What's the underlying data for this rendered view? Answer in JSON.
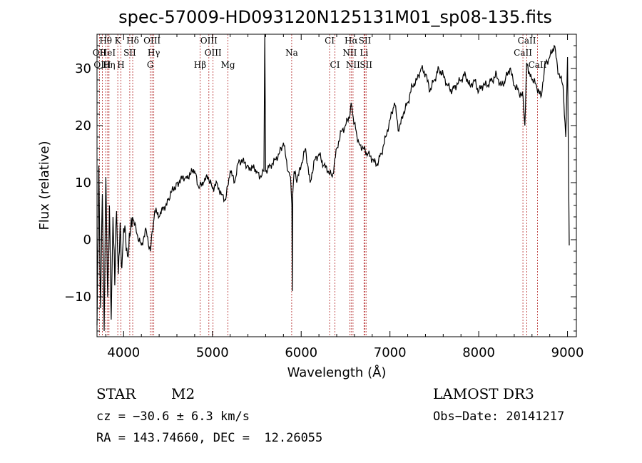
{
  "chart_data": {
    "type": "line",
    "title": "spec-57009-HD093120N125131M01_sp08-135.fits",
    "xlabel": "Wavelength (Å)",
    "ylabel": "Flux (relative)",
    "xlim": [
      3700,
      9100
    ],
    "ylim": [
      -17,
      36
    ],
    "xticks": [
      4000,
      5000,
      6000,
      7000,
      8000,
      9000
    ],
    "yticks": [
      -10,
      0,
      10,
      20,
      30
    ],
    "series": [
      {
        "name": "flux",
        "x": [
          3700,
          3720,
          3740,
          3760,
          3780,
          3800,
          3820,
          3840,
          3860,
          3880,
          3900,
          3920,
          3940,
          3960,
          3980,
          4000,
          4050,
          4100,
          4150,
          4200,
          4250,
          4300,
          4350,
          4400,
          4500,
          4600,
          4700,
          4800,
          4850,
          4900,
          4950,
          5000,
          5050,
          5100,
          5150,
          5200,
          5250,
          5300,
          5400,
          5500,
          5550,
          5580,
          5590,
          5600,
          5650,
          5700,
          5750,
          5800,
          5850,
          5880,
          5895,
          5900,
          5905,
          5920,
          5950,
          6000,
          6050,
          6100,
          6150,
          6200,
          6250,
          6300,
          6350,
          6400,
          6450,
          6500,
          6550,
          6563,
          6580,
          6620,
          6650,
          6700,
          6750,
          6800,
          6850,
          6900,
          6950,
          7000,
          7050,
          7100,
          7150,
          7200,
          7250,
          7300,
          7350,
          7400,
          7450,
          7500,
          7550,
          7600,
          7650,
          7700,
          7750,
          7800,
          7850,
          7900,
          7950,
          8000,
          8050,
          8100,
          8150,
          8200,
          8250,
          8300,
          8350,
          8400,
          8450,
          8500,
          8520,
          8540,
          8560,
          8600,
          8650,
          8700,
          8750,
          8800,
          8850,
          8900,
          8950,
          8980,
          9000,
          9020
        ],
        "values": [
          -15,
          13,
          -12,
          8,
          -16,
          11,
          -10,
          6,
          -14,
          4,
          -8,
          5,
          -6,
          3,
          -5,
          2,
          -3,
          4,
          1,
          -1,
          2,
          -2,
          5,
          4,
          7,
          10,
          11,
          12,
          9,
          10,
          11,
          9,
          10,
          8,
          7,
          12,
          10,
          14,
          13,
          12,
          11,
          12,
          36,
          12,
          13,
          14,
          15,
          17,
          12,
          11,
          6,
          -9,
          8,
          12,
          10,
          13,
          16,
          10,
          14,
          15,
          13,
          12,
          11,
          16,
          19,
          20,
          22,
          24,
          22,
          19,
          17,
          16,
          15,
          14,
          13,
          15,
          18,
          21,
          24,
          19,
          22,
          24,
          27,
          28,
          30,
          29,
          26,
          28,
          30,
          29,
          27,
          26,
          27,
          28,
          29,
          27,
          28,
          26,
          27,
          27,
          28,
          29,
          27,
          28,
          30,
          27,
          26,
          25,
          20,
          31,
          29,
          28,
          27,
          25,
          31,
          32,
          34,
          29,
          27,
          18,
          32,
          -1
        ]
      }
    ],
    "lines": [
      {
        "name": "Hθ",
        "x": 3798,
        "row": 0
      },
      {
        "name": "K",
        "x": 3934,
        "row": 0
      },
      {
        "name": "Hδ",
        "x": 4102,
        "row": 0
      },
      {
        "name": "OIII",
        "x": 4320,
        "row": 0
      },
      {
        "name": "OIII",
        "x": 4960,
        "row": 0
      },
      {
        "name": "CI",
        "x": 6320,
        "row": 0
      },
      {
        "name": "Hα",
        "x": 6563,
        "row": 0
      },
      {
        "name": "SII",
        "x": 6717,
        "row": 0
      },
      {
        "name": "CaII",
        "x": 8542,
        "row": 0
      },
      {
        "name": "OII",
        "x": 3727,
        "row": 1
      },
      {
        "name": "HeI",
        "x": 3820,
        "row": 1
      },
      {
        "name": "SII",
        "x": 4069,
        "row": 1
      },
      {
        "name": "Hγ",
        "x": 4340,
        "row": 1
      },
      {
        "name": "OIII",
        "x": 5007,
        "row": 1
      },
      {
        "name": "Na",
        "x": 5893,
        "row": 1
      },
      {
        "name": "NII",
        "x": 6548,
        "row": 1
      },
      {
        "name": "Li",
        "x": 6708,
        "row": 1
      },
      {
        "name": "CaII",
        "x": 8498,
        "row": 1
      },
      {
        "name": "OIII",
        "x": 3760,
        "row": 2
      },
      {
        "name": "Hη",
        "x": 3835,
        "row": 2
      },
      {
        "name": "H",
        "x": 3969,
        "row": 2
      },
      {
        "name": "G",
        "x": 4300,
        "row": 2
      },
      {
        "name": "Hβ",
        "x": 4861,
        "row": 2
      },
      {
        "name": "Mg",
        "x": 5175,
        "row": 2
      },
      {
        "name": "CI",
        "x": 6380,
        "row": 2
      },
      {
        "name": "NII",
        "x": 6584,
        "row": 2
      },
      {
        "name": "SII",
        "x": 6731,
        "row": 2
      },
      {
        "name": "CaII",
        "x": 8662,
        "row": 2
      }
    ]
  },
  "info": {
    "obj_type": "STAR",
    "subclass": "M2",
    "survey": "LAMOST DR3",
    "cz": "cz = −30.6 ± 6.3 km/s",
    "obs_date": "Obs−Date: 20141217",
    "coords": "RA = 143.74660, DEC =  12.26055"
  },
  "colors": {
    "line_markers": "#b22222",
    "spectrum": "#000000"
  }
}
